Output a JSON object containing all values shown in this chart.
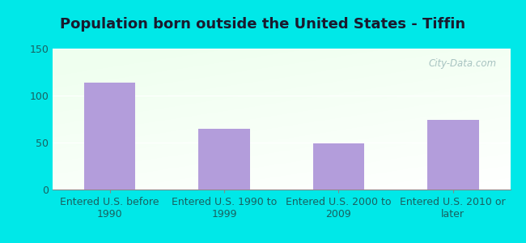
{
  "title": "Population born outside the United States - Tiffin",
  "categories": [
    "Entered U.S. before\n1990",
    "Entered U.S. 1990 to\n1999",
    "Entered U.S. 2000 to\n2009",
    "Entered U.S. 2010 or\nlater"
  ],
  "values": [
    114,
    65,
    49,
    74
  ],
  "bar_color": "#b39ddb",
  "ylim": [
    0,
    150
  ],
  "yticks": [
    0,
    50,
    100,
    150
  ],
  "bg_outer": "#00e8e8",
  "title_fontsize": 13,
  "tick_fontsize": 9,
  "watermark": "City-Data.com",
  "title_color": "#1a1a2e",
  "tick_color": "#1a6060"
}
